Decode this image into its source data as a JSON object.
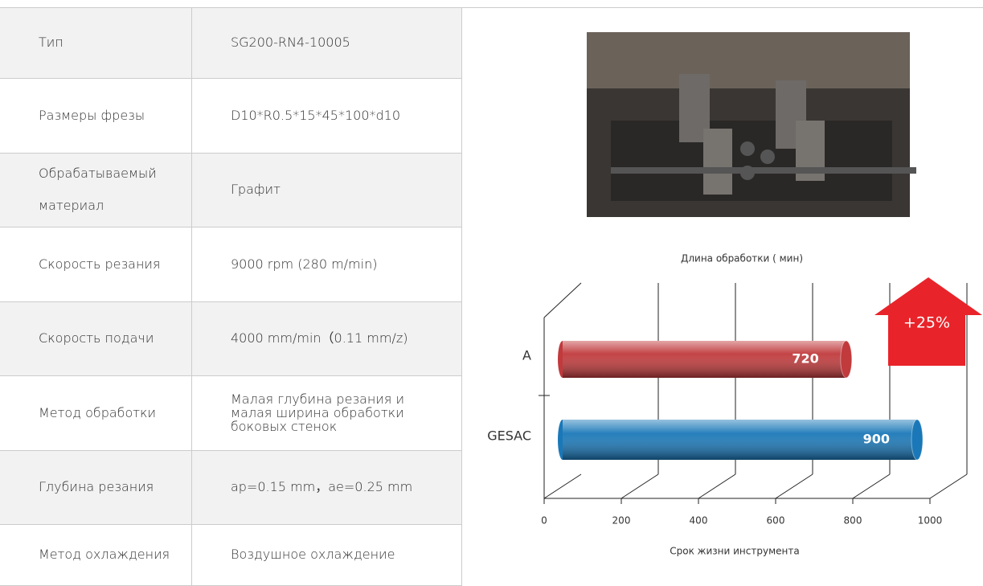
{
  "table": {
    "rows": [
      [
        "Тип",
        "SG200-RN4-10005"
      ],
      [
        "Размеры фрезы",
        "D10*R0.5*15*45*100*d10"
      ],
      [
        "Обрабатываемый материал",
        "Графит"
      ],
      [
        "Скорость резания",
        "9000 rpm (280 m/min)"
      ],
      [
        "Скорость подачи",
        "4000 mm/min（0.11 mm/z)"
      ],
      [
        "Метод обработки",
        "Малая глубина резания и малая ширина обработки боковых стенок"
      ],
      [
        "Глубина резания",
        "ap=0.15 mm，ae=0.25 mm"
      ],
      [
        "Метод охлаждения",
        "Воздушное охлаждение"
      ]
    ]
  },
  "chart_data": {
    "type": "bar",
    "orientation": "horizontal",
    "title": "Длина обработки ( мин)",
    "x_label": "Срок жизни инструмента",
    "categories": [
      "A",
      "GESAC"
    ],
    "values": [
      720,
      900
    ],
    "colors": [
      "#c13a3c",
      "#1a78b8"
    ],
    "xlim": [
      0,
      1000
    ],
    "xticks": [
      0,
      200,
      400,
      600,
      800,
      1000
    ],
    "annotation": "+25%",
    "annotation_color": "#e8242a"
  }
}
